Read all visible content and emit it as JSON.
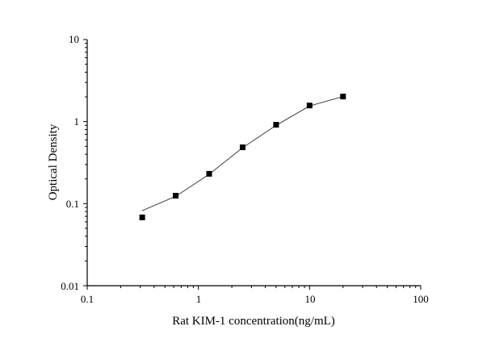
{
  "chart_data": {
    "type": "scatter",
    "title": "",
    "xlabel": "Rat KIM-1 concentration(ng/mL)",
    "ylabel": "Optical Density",
    "xscale": "log",
    "yscale": "log",
    "xlim": [
      0.1,
      100
    ],
    "ylim": [
      0.01,
      10
    ],
    "xticks": [
      "0.1",
      "1",
      "10",
      "100"
    ],
    "yticks": [
      "0.01",
      "0.1",
      "1",
      "10"
    ],
    "grid": false,
    "legend": "none",
    "series": [
      {
        "marker": "square",
        "color": "#000000",
        "x": [
          0.3125,
          0.625,
          1.25,
          2.5,
          5,
          10,
          20
        ],
        "y": [
          0.068,
          0.125,
          0.231,
          0.486,
          0.915,
          1.57,
          2.02
        ]
      }
    ],
    "fit_curve": {
      "color": "#333333",
      "x": [
        0.3125,
        0.625,
        1.25,
        2.5,
        5,
        10,
        20
      ],
      "y": [
        0.082,
        0.123,
        0.228,
        0.48,
        0.9,
        1.55,
        2.02
      ]
    }
  }
}
